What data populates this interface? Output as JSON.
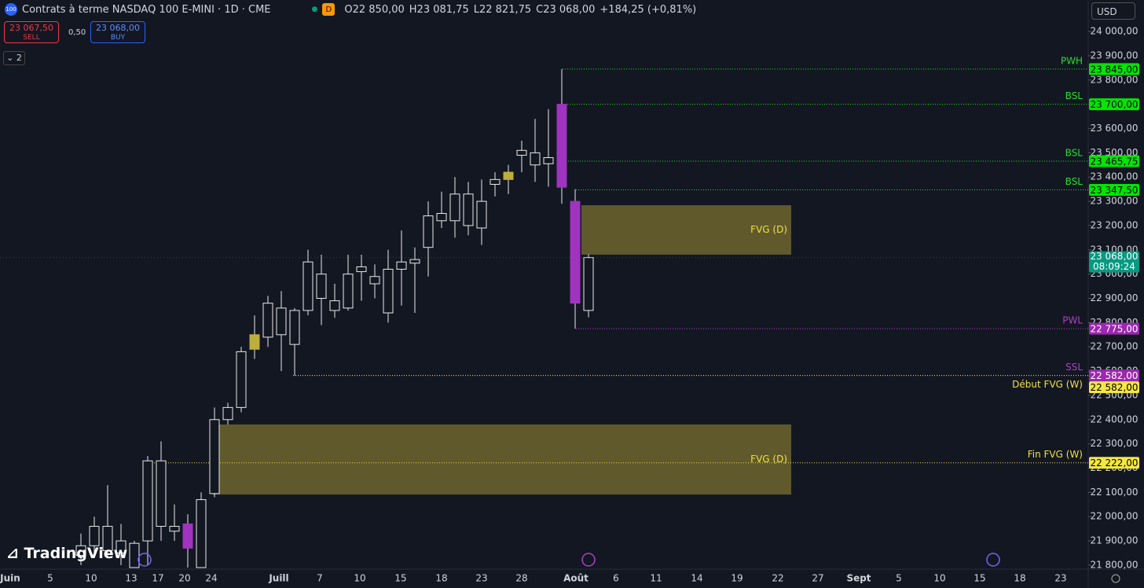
{
  "header": {
    "symbol_badge": "100",
    "title": "Contrats à terme NASDAQ 100 E-MINI · 1D · CME",
    "market_badge": "D",
    "ohlc": [
      {
        "key": "O",
        "value": "22 850,00"
      },
      {
        "key": "H",
        "value": "23 081,75"
      },
      {
        "key": "L",
        "value": "22 821,75"
      },
      {
        "key": "C",
        "value": "23 068,00"
      }
    ],
    "change": "+184,25 (+0,81%)",
    "currency": "USD"
  },
  "trade": {
    "sell_price": "23 067,50",
    "sell_label": "SELL",
    "spread": "0,50",
    "buy_price": "23 068,00",
    "buy_label": "BUY"
  },
  "indicators_count": "2",
  "brand": "TradingView",
  "chart_data": {
    "type": "candlestick",
    "candle_color": "#e8e8ec",
    "candles": [
      {
        "open": 21840,
        "high": 21930,
        "low": 21800,
        "close": 21880
      },
      {
        "open": 21880,
        "high": 22000,
        "low": 21830,
        "close": 21960
      },
      {
        "open": 21960,
        "high": 22130,
        "low": 21830,
        "close": 21860
      },
      {
        "open": 21850,
        "high": 21970,
        "low": 21800,
        "close": 21900
      },
      {
        "open": 21790,
        "high": 21900,
        "low": 21790,
        "close": 21890
      },
      {
        "open": 21900,
        "high": 22250,
        "low": 21800,
        "close": 22230
      },
      {
        "open": 22230,
        "high": 22310,
        "low": 21900,
        "close": 21960
      },
      {
        "open": 21960,
        "high": 22050,
        "low": 21900,
        "close": 21940
      },
      {
        "open": 21970,
        "high": 22010,
        "low": 21790,
        "close": 21870,
        "color": "#a033c0"
      },
      {
        "open": 21790,
        "high": 22100,
        "low": 21790,
        "close": 22070
      },
      {
        "open": 22095,
        "high": 22450,
        "low": 22080,
        "close": 22400
      },
      {
        "open": 22400,
        "high": 22470,
        "low": 22380,
        "close": 22450
      },
      {
        "open": 22450,
        "high": 22700,
        "low": 22430,
        "close": 22680
      },
      {
        "open": 22690,
        "high": 22830,
        "low": 22650,
        "close": 22750,
        "color": "#bfae3c"
      },
      {
        "open": 22740,
        "high": 22910,
        "low": 22700,
        "close": 22880
      },
      {
        "open": 22860,
        "high": 22930,
        "low": 22600,
        "close": 22750
      },
      {
        "open": 22710,
        "high": 22860,
        "low": 22582,
        "close": 22850
      },
      {
        "open": 22850,
        "high": 23100,
        "low": 22830,
        "close": 23050
      },
      {
        "open": 23000,
        "high": 23080,
        "low": 22790,
        "close": 22900
      },
      {
        "open": 22890,
        "high": 22960,
        "low": 22820,
        "close": 22850
      },
      {
        "open": 22860,
        "high": 23080,
        "low": 22850,
        "close": 23000
      },
      {
        "open": 23030,
        "high": 23080,
        "low": 22890,
        "close": 23010
      },
      {
        "open": 22990,
        "high": 23040,
        "low": 22900,
        "close": 22960
      },
      {
        "open": 22840,
        "high": 23100,
        "low": 22800,
        "close": 23020
      },
      {
        "open": 23020,
        "high": 23180,
        "low": 22870,
        "close": 23050
      },
      {
        "open": 23045,
        "high": 23110,
        "low": 22840,
        "close": 23060
      },
      {
        "open": 23110,
        "high": 23300,
        "low": 22990,
        "close": 23240
      },
      {
        "open": 23250,
        "high": 23340,
        "low": 23190,
        "close": 23220
      },
      {
        "open": 23220,
        "high": 23400,
        "low": 23150,
        "close": 23330
      },
      {
        "open": 23330,
        "high": 23380,
        "low": 23160,
        "close": 23200
      },
      {
        "open": 23190,
        "high": 23390,
        "low": 23120,
        "close": 23300
      },
      {
        "open": 23370,
        "high": 23420,
        "low": 23320,
        "close": 23390
      },
      {
        "open": 23390,
        "high": 23450,
        "low": 23330,
        "close": 23420,
        "color": "#bfae3c"
      },
      {
        "open": 23490,
        "high": 23550,
        "low": 23420,
        "close": 23510
      },
      {
        "open": 23500,
        "high": 23640,
        "low": 23380,
        "close": 23450
      },
      {
        "open": 23480,
        "high": 23680,
        "low": 23360,
        "close": 23455
      },
      {
        "open": 23700,
        "high": 23845,
        "low": 23290,
        "close": 23358,
        "color": "#a033c0"
      },
      {
        "open": 23300,
        "high": 23350,
        "low": 22775,
        "close": 22880,
        "color": "#a033c0"
      },
      {
        "open": 22850,
        "high": 23081.75,
        "low": 22821.75,
        "close": 23068
      }
    ],
    "ylim": [
      21790,
      24130
    ],
    "yticks": [
      {
        "value": 21800,
        "label": "21 800,00"
      },
      {
        "value": 21900,
        "label": "21 900,00"
      },
      {
        "value": 22000,
        "label": "22 000,00"
      },
      {
        "value": 22100,
        "label": "22 100,00"
      },
      {
        "value": 22200,
        "label": "22 200,00"
      },
      {
        "value": 22300,
        "label": "22 300,00"
      },
      {
        "value": 22400,
        "label": "22 400,00"
      },
      {
        "value": 22500,
        "label": "22 500,00"
      },
      {
        "value": 22600,
        "label": "22 600,00"
      },
      {
        "value": 22700,
        "label": "22 700,00"
      },
      {
        "value": 22800,
        "label": "22 800,00"
      },
      {
        "value": 22900,
        "label": "22 900,00"
      },
      {
        "value": 23000,
        "label": "23 000,00"
      },
      {
        "value": 23100,
        "label": "23 100,00"
      },
      {
        "value": 23200,
        "label": "23 200,00"
      },
      {
        "value": 23300,
        "label": "23 300,00"
      },
      {
        "value": 23400,
        "label": "23 400,00"
      },
      {
        "value": 23500,
        "label": "23 500,00"
      },
      {
        "value": 23600,
        "label": "23 600,00"
      },
      {
        "value": 23700,
        "label": "23 700,00"
      },
      {
        "value": 23800,
        "label": "23 800,00"
      },
      {
        "value": 23900,
        "label": "23 900,00"
      },
      {
        "value": 24000,
        "label": "24 000,00"
      }
    ],
    "x_labels": [
      "Juin",
      "5",
      "10",
      "13",
      "17",
      "20",
      "24",
      "Juill",
      "7",
      "10",
      "15",
      "18",
      "23",
      "28",
      "Août",
      "6",
      "11",
      "14",
      "19",
      "22",
      "27",
      "Sept",
      "5",
      "10",
      "15",
      "18",
      "23"
    ],
    "levels": [
      {
        "name": "PWH",
        "value": 23845,
        "label": "23 845,00",
        "color": "#22e02a",
        "tag_color": "#00e600"
      },
      {
        "name": "BSL",
        "value": 23700,
        "label": "23 700,00",
        "color": "#22e02a",
        "tag_color": "#00e600"
      },
      {
        "name": "BSL",
        "value": 23465.75,
        "label": "23 465,75",
        "color": "#22e02a",
        "tag_color": "#00e600"
      },
      {
        "name": "BSL",
        "value": 23347.5,
        "label": "23 347,50",
        "color": "#22e02a",
        "tag_color": "#00e600"
      },
      {
        "name": "PWL",
        "value": 22775,
        "label": "22 775,00",
        "color": "#b040c8",
        "tag_color": "#9c27b0"
      },
      {
        "name": "SSL",
        "value": 22582,
        "label": "22 582,00",
        "color": "#b040c8",
        "tag_color": "#9c27b0"
      },
      {
        "name": "Début FVG (W)",
        "value": 22582,
        "label": "22 582,00",
        "color": "#f0e040",
        "tag_color": "#f5e642"
      },
      {
        "name": "Fin FVG (W)",
        "value": 22222,
        "label": "22 222,00",
        "color": "#f0e040",
        "tag_color": "#f5e642"
      }
    ],
    "zones": [
      {
        "label": "FVG (D)",
        "top": 23284,
        "bottom": 23080,
        "color": "#c8b43c"
      },
      {
        "label": "FVG (D)",
        "top": 22380,
        "bottom": 22091,
        "color": "#c8b43c"
      }
    ],
    "last_price": {
      "value": 23068,
      "label": "23 068,00",
      "countdown": "08:09:24",
      "color": "#089981"
    }
  }
}
